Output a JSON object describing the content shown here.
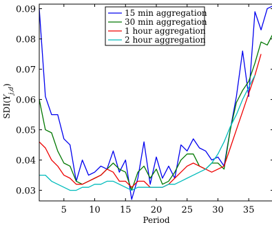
{
  "chart_data": {
    "type": "line",
    "xlabel": "Period",
    "ylabel": "SDI(Y_{j,d})",
    "xlim": [
      1,
      39
    ],
    "ylim": [
      0.0265,
      0.0915
    ],
    "xticks": [
      5,
      10,
      15,
      20,
      25,
      30,
      35
    ],
    "yticks": [
      0.03,
      0.04,
      0.05,
      0.06,
      0.07,
      0.08,
      0.09
    ],
    "ytick_labels": [
      "0.03",
      "0.04",
      "0.05",
      "0.06",
      "0.07",
      "0.08",
      "0.09"
    ],
    "grid": false,
    "legend_position": "top-center",
    "series": [
      {
        "name": "15 min aggregation",
        "color": "#0000ee",
        "x": [
          1,
          2,
          3,
          4,
          5,
          6,
          7,
          8,
          9,
          10,
          11,
          12,
          13,
          14,
          15,
          16,
          17,
          18,
          19,
          20,
          21,
          22,
          23,
          24,
          25,
          26,
          27,
          28,
          29,
          30,
          31,
          32,
          33,
          34,
          35,
          36,
          37,
          38,
          39
        ],
        "values": [
          0.09,
          0.061,
          0.055,
          0.055,
          0.047,
          0.045,
          0.033,
          0.04,
          0.035,
          0.036,
          0.038,
          0.037,
          0.043,
          0.036,
          0.04,
          0.027,
          0.034,
          0.046,
          0.032,
          0.041,
          0.034,
          0.038,
          0.034,
          0.045,
          0.043,
          0.047,
          0.044,
          0.043,
          0.04,
          0.041,
          0.038,
          0.05,
          0.061,
          0.076,
          0.061,
          0.089,
          0.083,
          0.09,
          0.091
        ]
      },
      {
        "name": "30 min aggregation",
        "color": "#007700",
        "x": [
          1,
          2,
          3,
          4,
          5,
          6,
          7,
          8,
          9,
          10,
          11,
          12,
          13,
          14,
          15,
          16,
          17,
          18,
          19,
          20,
          21,
          22,
          23,
          24,
          25,
          26,
          27,
          28,
          29,
          30,
          31,
          32,
          33,
          34,
          35,
          36,
          37,
          38,
          39
        ],
        "values": [
          0.06,
          0.05,
          0.049,
          0.043,
          0.039,
          0.038,
          0.033,
          0.032,
          0.033,
          0.034,
          0.035,
          0.037,
          0.039,
          0.037,
          0.036,
          0.03,
          0.036,
          0.038,
          0.034,
          0.037,
          0.032,
          0.033,
          0.036,
          0.04,
          0.042,
          0.042,
          0.038,
          0.037,
          0.039,
          0.039,
          0.037,
          0.05,
          0.059,
          0.063,
          0.066,
          0.072,
          0.079,
          0.078,
          0.082
        ]
      },
      {
        "name": "1 hour aggregation",
        "color": "#ee0000",
        "x": [
          1,
          2,
          3,
          4,
          5,
          6,
          7,
          8,
          9,
          10,
          11,
          12,
          13,
          14,
          15,
          16,
          17,
          18,
          19,
          20,
          21,
          22,
          23,
          24,
          25,
          26,
          27,
          28,
          29,
          30,
          31,
          32,
          33,
          34,
          35,
          36,
          37
        ],
        "values": [
          0.046,
          0.044,
          0.04,
          0.038,
          0.035,
          0.034,
          0.032,
          0.032,
          0.033,
          0.034,
          0.035,
          0.037,
          0.036,
          0.033,
          0.033,
          0.031,
          0.033,
          0.033,
          0.031,
          0.031,
          0.031,
          0.032,
          0.034,
          0.036,
          0.038,
          0.039,
          0.038,
          0.037,
          0.036,
          0.037,
          0.038,
          0.044,
          0.05,
          0.056,
          0.062,
          0.068,
          0.075
        ]
      },
      {
        "name": "2 hour aggregation",
        "color": "#00bbbb",
        "x": [
          1,
          2,
          3,
          4,
          5,
          6,
          7,
          8,
          9,
          10,
          11,
          12,
          13,
          14,
          15,
          16,
          17,
          18,
          19,
          20,
          21,
          22,
          23,
          24,
          25,
          26,
          27,
          28,
          29,
          30,
          31,
          32,
          33,
          34,
          35,
          36
        ],
        "values": [
          0.035,
          0.035,
          0.033,
          0.032,
          0.031,
          0.03,
          0.03,
          0.031,
          0.031,
          0.032,
          0.032,
          0.033,
          0.033,
          0.032,
          0.031,
          0.03,
          0.031,
          0.031,
          0.031,
          0.031,
          0.031,
          0.032,
          0.032,
          0.033,
          0.034,
          0.035,
          0.036,
          0.037,
          0.039,
          0.042,
          0.046,
          0.051,
          0.055,
          0.06,
          0.064,
          0.068
        ]
      }
    ]
  }
}
